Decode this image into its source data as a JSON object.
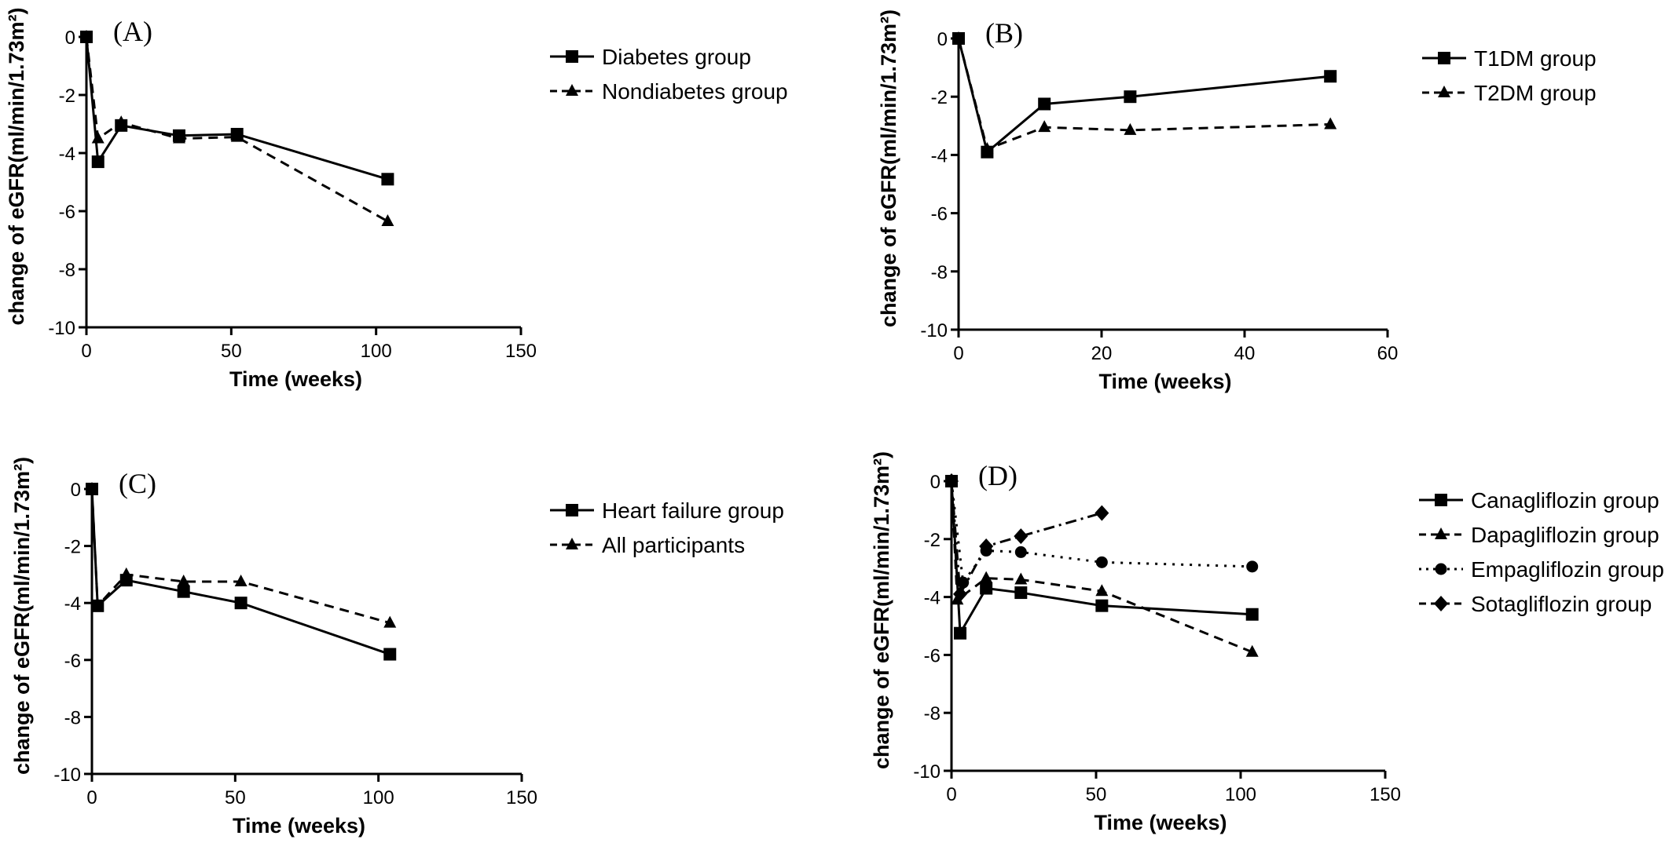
{
  "chart_data": [
    {
      "type": "line",
      "panel_label": "(A)",
      "xlabel": "Time (weeks)",
      "ylabel": "change of eGFR(ml/min/1.73m²)",
      "xlim": [
        0,
        150
      ],
      "ylim": [
        -10,
        0
      ],
      "xticks": [
        0,
        50,
        100,
        150
      ],
      "yticks": [
        0,
        -2,
        -4,
        -6,
        -8,
        -10
      ],
      "legend_position": "right",
      "series": [
        {
          "name": "Diabetes group",
          "marker": "square",
          "dash": "solid",
          "x": [
            0,
            4,
            12,
            32,
            52,
            104
          ],
          "y": [
            0,
            -4.3,
            -3.05,
            -3.4,
            -3.35,
            -4.9
          ]
        },
        {
          "name": "Nondiabetes group",
          "marker": "triangle",
          "dash": "dashed",
          "x": [
            0,
            4,
            12,
            32,
            52,
            104
          ],
          "y": [
            0,
            -3.5,
            -2.95,
            -3.5,
            -3.45,
            -6.35
          ]
        }
      ]
    },
    {
      "type": "line",
      "panel_label": "(B)",
      "xlabel": "Time (weeks)",
      "ylabel": "change of eGFR(ml/min/1.73m²)",
      "xlim": [
        0,
        60
      ],
      "ylim": [
        -10,
        0
      ],
      "xticks": [
        0,
        20,
        40,
        60
      ],
      "yticks": [
        0,
        -2,
        -4,
        -6,
        -8,
        -10
      ],
      "legend_position": "right",
      "series": [
        {
          "name": "T1DM group",
          "marker": "square",
          "dash": "solid",
          "x": [
            0,
            4,
            12,
            24,
            52
          ],
          "y": [
            0,
            -3.9,
            -2.25,
            -2.0,
            -1.3
          ]
        },
        {
          "name": "T2DM group",
          "marker": "triangle",
          "dash": "dashed",
          "x": [
            0,
            4,
            12,
            24,
            52
          ],
          "y": [
            0,
            -3.8,
            -3.05,
            -3.15,
            -2.95
          ]
        }
      ]
    },
    {
      "type": "line",
      "panel_label": "(C)",
      "xlabel": "Time (weeks)",
      "ylabel": "change of eGFR(ml/min/1.73m²)",
      "xlim": [
        0,
        150
      ],
      "ylim": [
        -10,
        0
      ],
      "xticks": [
        0,
        50,
        100,
        150
      ],
      "yticks": [
        0,
        -2,
        -4,
        -6,
        -8,
        -10
      ],
      "legend_position": "right",
      "series": [
        {
          "name": "Heart failure group",
          "marker": "square",
          "dash": "solid",
          "x": [
            0,
            2,
            12,
            32,
            52,
            104
          ],
          "y": [
            0,
            -4.1,
            -3.2,
            -3.6,
            -4.0,
            -5.8
          ]
        },
        {
          "name": "All participants",
          "marker": "triangle",
          "dash": "dashed",
          "x": [
            0,
            2,
            12,
            32,
            52,
            104
          ],
          "y": [
            0,
            -4.1,
            -3.0,
            -3.25,
            -3.25,
            -4.7
          ]
        }
      ]
    },
    {
      "type": "line",
      "panel_label": "(D)",
      "xlabel": "Time (weeks)",
      "ylabel": "change of eGFR(ml/min/1.73m²)",
      "xlim": [
        0,
        150
      ],
      "ylim": [
        -10,
        0
      ],
      "xticks": [
        0,
        50,
        100,
        150
      ],
      "yticks": [
        0,
        -2,
        -4,
        -6,
        -8,
        -10
      ],
      "legend_position": "right",
      "series": [
        {
          "name": "Canagliflozin group",
          "marker": "square",
          "dash": "solid",
          "x": [
            0,
            3,
            12,
            24,
            52,
            104
          ],
          "y": [
            0,
            -5.25,
            -3.7,
            -3.85,
            -4.3,
            -4.6
          ]
        },
        {
          "name": "Dapagliflozin group",
          "marker": "triangle",
          "dash": "dashed",
          "x": [
            0,
            2,
            12,
            24,
            52,
            104
          ],
          "y": [
            0,
            -4.1,
            -3.35,
            -3.4,
            -3.8,
            -5.9
          ]
        },
        {
          "name": "Empagliflozin group",
          "marker": "circle",
          "dash": "dotted",
          "x": [
            0,
            4,
            12,
            24,
            52,
            104
          ],
          "y": [
            0,
            -3.5,
            -2.4,
            -2.45,
            -2.8,
            -2.95
          ]
        },
        {
          "name": "Sotagliflozin group",
          "marker": "diamond",
          "dash": "dashdot",
          "x": [
            0,
            3,
            12,
            24,
            52
          ],
          "y": [
            0,
            -3.9,
            -2.25,
            -1.9,
            -1.1
          ]
        }
      ]
    }
  ]
}
